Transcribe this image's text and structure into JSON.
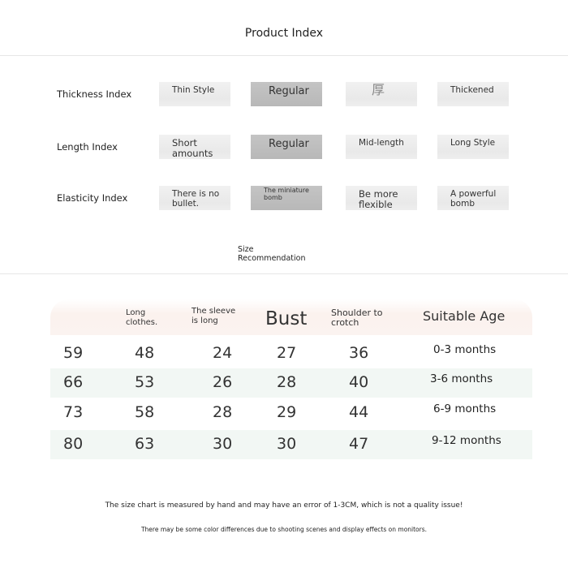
{
  "title": "Product Index",
  "indices": [
    {
      "label": "Thickness Index",
      "options": [
        "Thin Style",
        "Regular",
        "厚",
        "Thickened"
      ],
      "selected": 1
    },
    {
      "label": "Length Index",
      "options": [
        "Short amounts",
        "Regular",
        "Mid-length",
        "Long Style"
      ],
      "selected": 1
    },
    {
      "label": "Elasticity Index",
      "options": [
        "There is no bullet.",
        "The miniature bomb",
        "Be more flexible",
        "A powerful bomb"
      ],
      "selected": 1
    }
  ],
  "size_recommendation": "Size Recommendation",
  "table": {
    "headers": [
      "",
      "Long clothes.",
      "The sleeve is long",
      "Bust",
      "Shoulder to crotch",
      "Suitable Age"
    ],
    "rows": [
      [
        "59",
        "48",
        "24",
        "27",
        "36",
        "0-3 months"
      ],
      [
        "66",
        "53",
        "26",
        "28",
        "40",
        "3-6 months"
      ],
      [
        "73",
        "58",
        "28",
        "29",
        "44",
        "6-9 months"
      ],
      [
        "80",
        "63",
        "30",
        "30",
        "47",
        "9-12 months"
      ]
    ]
  },
  "notes": [
    "The size chart is measured by hand and may have an error of 1-3CM, which is not a quality issue!",
    "There may be some color differences due to shooting scenes and display effects on monitors."
  ],
  "colors": {
    "selected_box": "#bdbdbd",
    "option_box": "#ececec",
    "alt_row": "#f2f7f4",
    "header_row": "#fbf3f0"
  }
}
